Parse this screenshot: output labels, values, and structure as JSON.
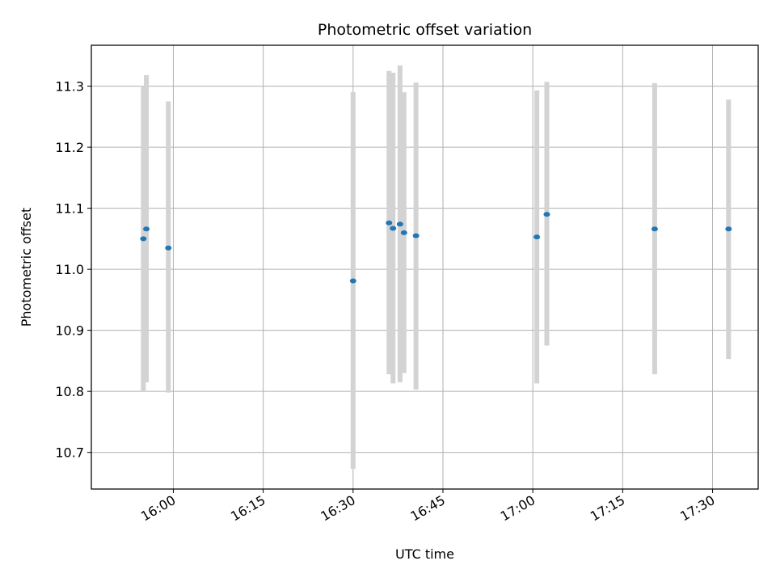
{
  "chart_data": {
    "type": "scatter",
    "title": "Photometric offset variation",
    "xlabel": "UTC time",
    "ylabel": "Photometric offset",
    "x_tick_labels": [
      "16:00",
      "16:15",
      "16:30",
      "16:45",
      "17:00",
      "17:15",
      "17:30"
    ],
    "y_tick_labels": [
      "10.7",
      "10.8",
      "10.9",
      "11.0",
      "11.1",
      "11.2",
      "11.3"
    ],
    "x_ticks": [
      "16:00",
      "16:15",
      "16:30",
      "16:45",
      "17:00",
      "17:15",
      "17:30"
    ],
    "y_ticks": [
      10.7,
      10.8,
      10.9,
      11.0,
      11.1,
      11.2,
      11.3
    ],
    "xlim": [
      "15:46:19",
      "17:37:37"
    ],
    "ylim": [
      10.64,
      11.367
    ],
    "grid": true,
    "colors": {
      "point": "#1f77b4",
      "errorbar": "#d3d3d3",
      "grid": "#b0b0b0"
    },
    "points": [
      {
        "time": "15:55:00",
        "offset": 11.05,
        "lower": 10.8,
        "upper": 11.3
      },
      {
        "time": "15:55:30",
        "offset": 11.066,
        "lower": 10.815,
        "upper": 11.318
      },
      {
        "time": "15:59:10",
        "offset": 11.035,
        "lower": 10.798,
        "upper": 11.275
      },
      {
        "time": "16:30:00",
        "offset": 10.981,
        "lower": 10.673,
        "upper": 11.29
      },
      {
        "time": "16:36:00",
        "offset": 11.076,
        "lower": 10.828,
        "upper": 11.325
      },
      {
        "time": "16:36:40",
        "offset": 11.067,
        "lower": 10.813,
        "upper": 11.322
      },
      {
        "time": "16:37:50",
        "offset": 11.074,
        "lower": 10.815,
        "upper": 11.334
      },
      {
        "time": "16:38:30",
        "offset": 11.06,
        "lower": 10.83,
        "upper": 11.29
      },
      {
        "time": "16:40:30",
        "offset": 11.055,
        "lower": 10.803,
        "upper": 11.306
      },
      {
        "time": "17:00:40",
        "offset": 11.053,
        "lower": 10.813,
        "upper": 11.293
      },
      {
        "time": "17:02:20",
        "offset": 11.09,
        "lower": 10.875,
        "upper": 11.307
      },
      {
        "time": "17:20:20",
        "offset": 11.066,
        "lower": 10.828,
        "upper": 11.305
      },
      {
        "time": "17:32:40",
        "offset": 11.066,
        "lower": 10.853,
        "upper": 11.278
      }
    ]
  }
}
